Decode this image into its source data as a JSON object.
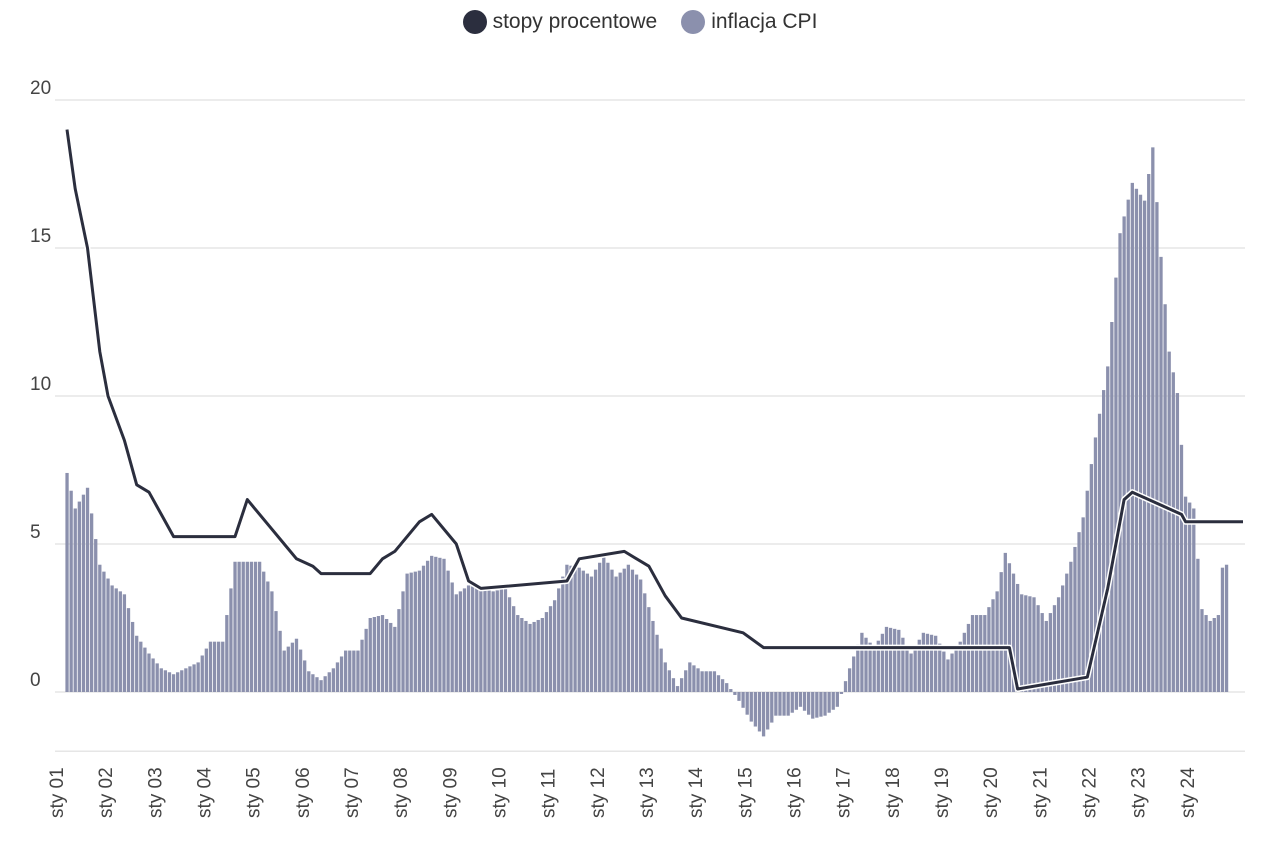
{
  "chart_data": {
    "type": "bar",
    "title": "",
    "xlabel": "",
    "ylabel": "",
    "legend_placement": "top-center",
    "grid": true,
    "ylim": [
      -2,
      20
    ],
    "yticks": [
      0,
      5,
      10,
      15,
      20
    ],
    "x_start": "2001-01",
    "x_end": "2024-12",
    "x_ticks": [
      "sty 01",
      "sty 02",
      "sty 03",
      "sty 04",
      "sty 05",
      "sty 06",
      "sty 07",
      "sty 08",
      "sty 09",
      "sty 10",
      "sty 11",
      "sty 12",
      "sty 13",
      "sty 14",
      "sty 15",
      "sty 16",
      "sty 17",
      "sty 18",
      "sty 19",
      "sty 20",
      "sty 21",
      "sty 22",
      "sty 23",
      "sty 24"
    ],
    "series": [
      {
        "name": "stopy procentowe",
        "type": "line",
        "color": "#2b2e3e",
        "points": [
          [
            "2001-01",
            19.0
          ],
          [
            "2001-03",
            17.0
          ],
          [
            "2001-06",
            15.0
          ],
          [
            "2001-09",
            11.5
          ],
          [
            "2001-11",
            10.0
          ],
          [
            "2002-03",
            8.5
          ],
          [
            "2002-06",
            7.0
          ],
          [
            "2002-09",
            6.75
          ],
          [
            "2002-12",
            6.0
          ],
          [
            "2003-03",
            5.25
          ],
          [
            "2004-06",
            5.25
          ],
          [
            "2004-09",
            6.5
          ],
          [
            "2005-03",
            5.5
          ],
          [
            "2005-06",
            5.0
          ],
          [
            "2005-09",
            4.5
          ],
          [
            "2006-01",
            4.25
          ],
          [
            "2006-03",
            4.0
          ],
          [
            "2007-03",
            4.0
          ],
          [
            "2007-06",
            4.5
          ],
          [
            "2007-09",
            4.75
          ],
          [
            "2008-03",
            5.75
          ],
          [
            "2008-06",
            6.0
          ],
          [
            "2008-12",
            5.0
          ],
          [
            "2009-03",
            3.75
          ],
          [
            "2009-06",
            3.5
          ],
          [
            "2011-03",
            3.75
          ],
          [
            "2011-06",
            4.5
          ],
          [
            "2012-05",
            4.75
          ],
          [
            "2012-11",
            4.25
          ],
          [
            "2013-03",
            3.25
          ],
          [
            "2013-07",
            2.5
          ],
          [
            "2014-10",
            2.0
          ],
          [
            "2015-03",
            1.5
          ],
          [
            "2020-03",
            1.5
          ],
          [
            "2020-05",
            0.1
          ],
          [
            "2021-10",
            0.5
          ],
          [
            "2022-03",
            3.5
          ],
          [
            "2022-07",
            6.5
          ],
          [
            "2022-09",
            6.75
          ],
          [
            "2023-09",
            6.0
          ],
          [
            "2023-10",
            5.75
          ],
          [
            "2024-12",
            5.75
          ]
        ]
      },
      {
        "name": "inflacja CPI",
        "type": "bar",
        "color": "#8b90ad",
        "points": [
          [
            "2001-01",
            7.4
          ],
          [
            "2001-03",
            6.2
          ],
          [
            "2001-06",
            6.9
          ],
          [
            "2001-09",
            4.3
          ],
          [
            "2001-12",
            3.6
          ],
          [
            "2002-03",
            3.3
          ],
          [
            "2002-06",
            1.9
          ],
          [
            "2002-09",
            1.3
          ],
          [
            "2002-12",
            0.8
          ],
          [
            "2003-03",
            0.6
          ],
          [
            "2003-06",
            0.8
          ],
          [
            "2003-09",
            1.0
          ],
          [
            "2003-12",
            1.7
          ],
          [
            "2004-03",
            1.7
          ],
          [
            "2004-06",
            4.4
          ],
          [
            "2004-09",
            4.4
          ],
          [
            "2004-12",
            4.4
          ],
          [
            "2005-03",
            3.4
          ],
          [
            "2005-06",
            1.4
          ],
          [
            "2005-09",
            1.8
          ],
          [
            "2005-12",
            0.7
          ],
          [
            "2006-03",
            0.4
          ],
          [
            "2006-06",
            0.8
          ],
          [
            "2006-09",
            1.4
          ],
          [
            "2006-12",
            1.4
          ],
          [
            "2007-03",
            2.5
          ],
          [
            "2007-06",
            2.6
          ],
          [
            "2007-09",
            2.2
          ],
          [
            "2007-12",
            4.0
          ],
          [
            "2008-03",
            4.1
          ],
          [
            "2008-06",
            4.6
          ],
          [
            "2008-09",
            4.5
          ],
          [
            "2008-12",
            3.3
          ],
          [
            "2009-03",
            3.6
          ],
          [
            "2009-06",
            3.5
          ],
          [
            "2009-09",
            3.4
          ],
          [
            "2009-12",
            3.5
          ],
          [
            "2010-03",
            2.6
          ],
          [
            "2010-06",
            2.3
          ],
          [
            "2010-09",
            2.5
          ],
          [
            "2010-12",
            3.1
          ],
          [
            "2011-03",
            4.3
          ],
          [
            "2011-06",
            4.2
          ],
          [
            "2011-09",
            3.9
          ],
          [
            "2011-12",
            4.6
          ],
          [
            "2012-03",
            3.9
          ],
          [
            "2012-06",
            4.3
          ],
          [
            "2012-09",
            3.8
          ],
          [
            "2012-12",
            2.4
          ],
          [
            "2013-03",
            1.0
          ],
          [
            "2013-06",
            0.2
          ],
          [
            "2013-09",
            1.0
          ],
          [
            "2013-12",
            0.7
          ],
          [
            "2014-03",
            0.7
          ],
          [
            "2014-06",
            0.3
          ],
          [
            "2014-09",
            -0.3
          ],
          [
            "2014-12",
            -1.0
          ],
          [
            "2015-03",
            -1.5
          ],
          [
            "2015-06",
            -0.8
          ],
          [
            "2015-09",
            -0.8
          ],
          [
            "2015-12",
            -0.5
          ],
          [
            "2016-03",
            -0.9
          ],
          [
            "2016-06",
            -0.8
          ],
          [
            "2016-09",
            -0.5
          ],
          [
            "2016-12",
            0.8
          ],
          [
            "2017-03",
            2.0
          ],
          [
            "2017-06",
            1.5
          ],
          [
            "2017-09",
            2.2
          ],
          [
            "2017-12",
            2.1
          ],
          [
            "2018-03",
            1.3
          ],
          [
            "2018-06",
            2.0
          ],
          [
            "2018-09",
            1.9
          ],
          [
            "2018-12",
            1.1
          ],
          [
            "2019-03",
            1.7
          ],
          [
            "2019-06",
            2.6
          ],
          [
            "2019-09",
            2.6
          ],
          [
            "2019-12",
            3.4
          ],
          [
            "2020-02",
            4.7
          ],
          [
            "2020-06",
            3.3
          ],
          [
            "2020-09",
            3.2
          ],
          [
            "2020-12",
            2.4
          ],
          [
            "2021-03",
            3.2
          ],
          [
            "2021-06",
            4.4
          ],
          [
            "2021-09",
            5.9
          ],
          [
            "2021-12",
            8.6
          ],
          [
            "2022-03",
            11.0
          ],
          [
            "2022-06",
            15.5
          ],
          [
            "2022-09",
            17.2
          ],
          [
            "2022-12",
            16.6
          ],
          [
            "2023-02",
            18.4
          ],
          [
            "2023-04",
            14.7
          ],
          [
            "2023-06",
            11.5
          ],
          [
            "2023-08",
            10.1
          ],
          [
            "2023-10",
            6.6
          ],
          [
            "2023-12",
            6.2
          ],
          [
            "2024-02",
            2.8
          ],
          [
            "2024-04",
            2.4
          ],
          [
            "2024-06",
            2.6
          ],
          [
            "2024-07",
            4.2
          ],
          [
            "2024-08",
            4.3
          ]
        ]
      }
    ]
  }
}
